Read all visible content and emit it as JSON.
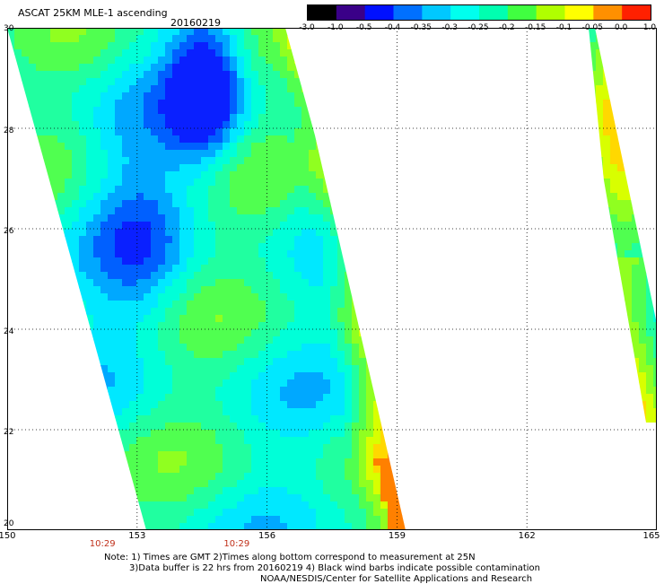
{
  "header": {
    "title": "ASCAT 25KM MLE-1 ascending",
    "date": "20160219"
  },
  "colorbar": {
    "labels": [
      "-3.0",
      "-1.0",
      "-0.5",
      "-0.4",
      "-0.35",
      "-0.3",
      "-0.25",
      "-0.2",
      "-0.15",
      "-0.1",
      "-0.05",
      "0.0",
      "1.0"
    ],
    "colors": [
      "#000000",
      "#3a0088",
      "#0010ff",
      "#0070ff",
      "#00c8ff",
      "#00ffee",
      "#00ffb0",
      "#40ff40",
      "#b0ff00",
      "#ffff00",
      "#ff9000",
      "#ff2000"
    ]
  },
  "map": {
    "lat_labels": [
      "30",
      "28",
      "26",
      "24",
      "22",
      "20"
    ],
    "lon_labels": [
      "150",
      "153",
      "156",
      "159",
      "162",
      "165"
    ],
    "lat_range": [
      20,
      30
    ],
    "lon_range": [
      150,
      165
    ],
    "grid": "dotted",
    "pass_times": [
      {
        "text": "10:29",
        "lon": 152.2
      },
      {
        "text": "10:29",
        "lon": 155.3
      }
    ]
  },
  "notes": [
    "Note: 1) Times are GMT 2)Times along bottom correspond to measurement at 25N",
    "3)Data buffer is 22 hrs from 20160219 4) Black wind barbs indicate possible contamination",
    "NOAA/NESDIS/Center for Satellite Applications and Research"
  ]
}
